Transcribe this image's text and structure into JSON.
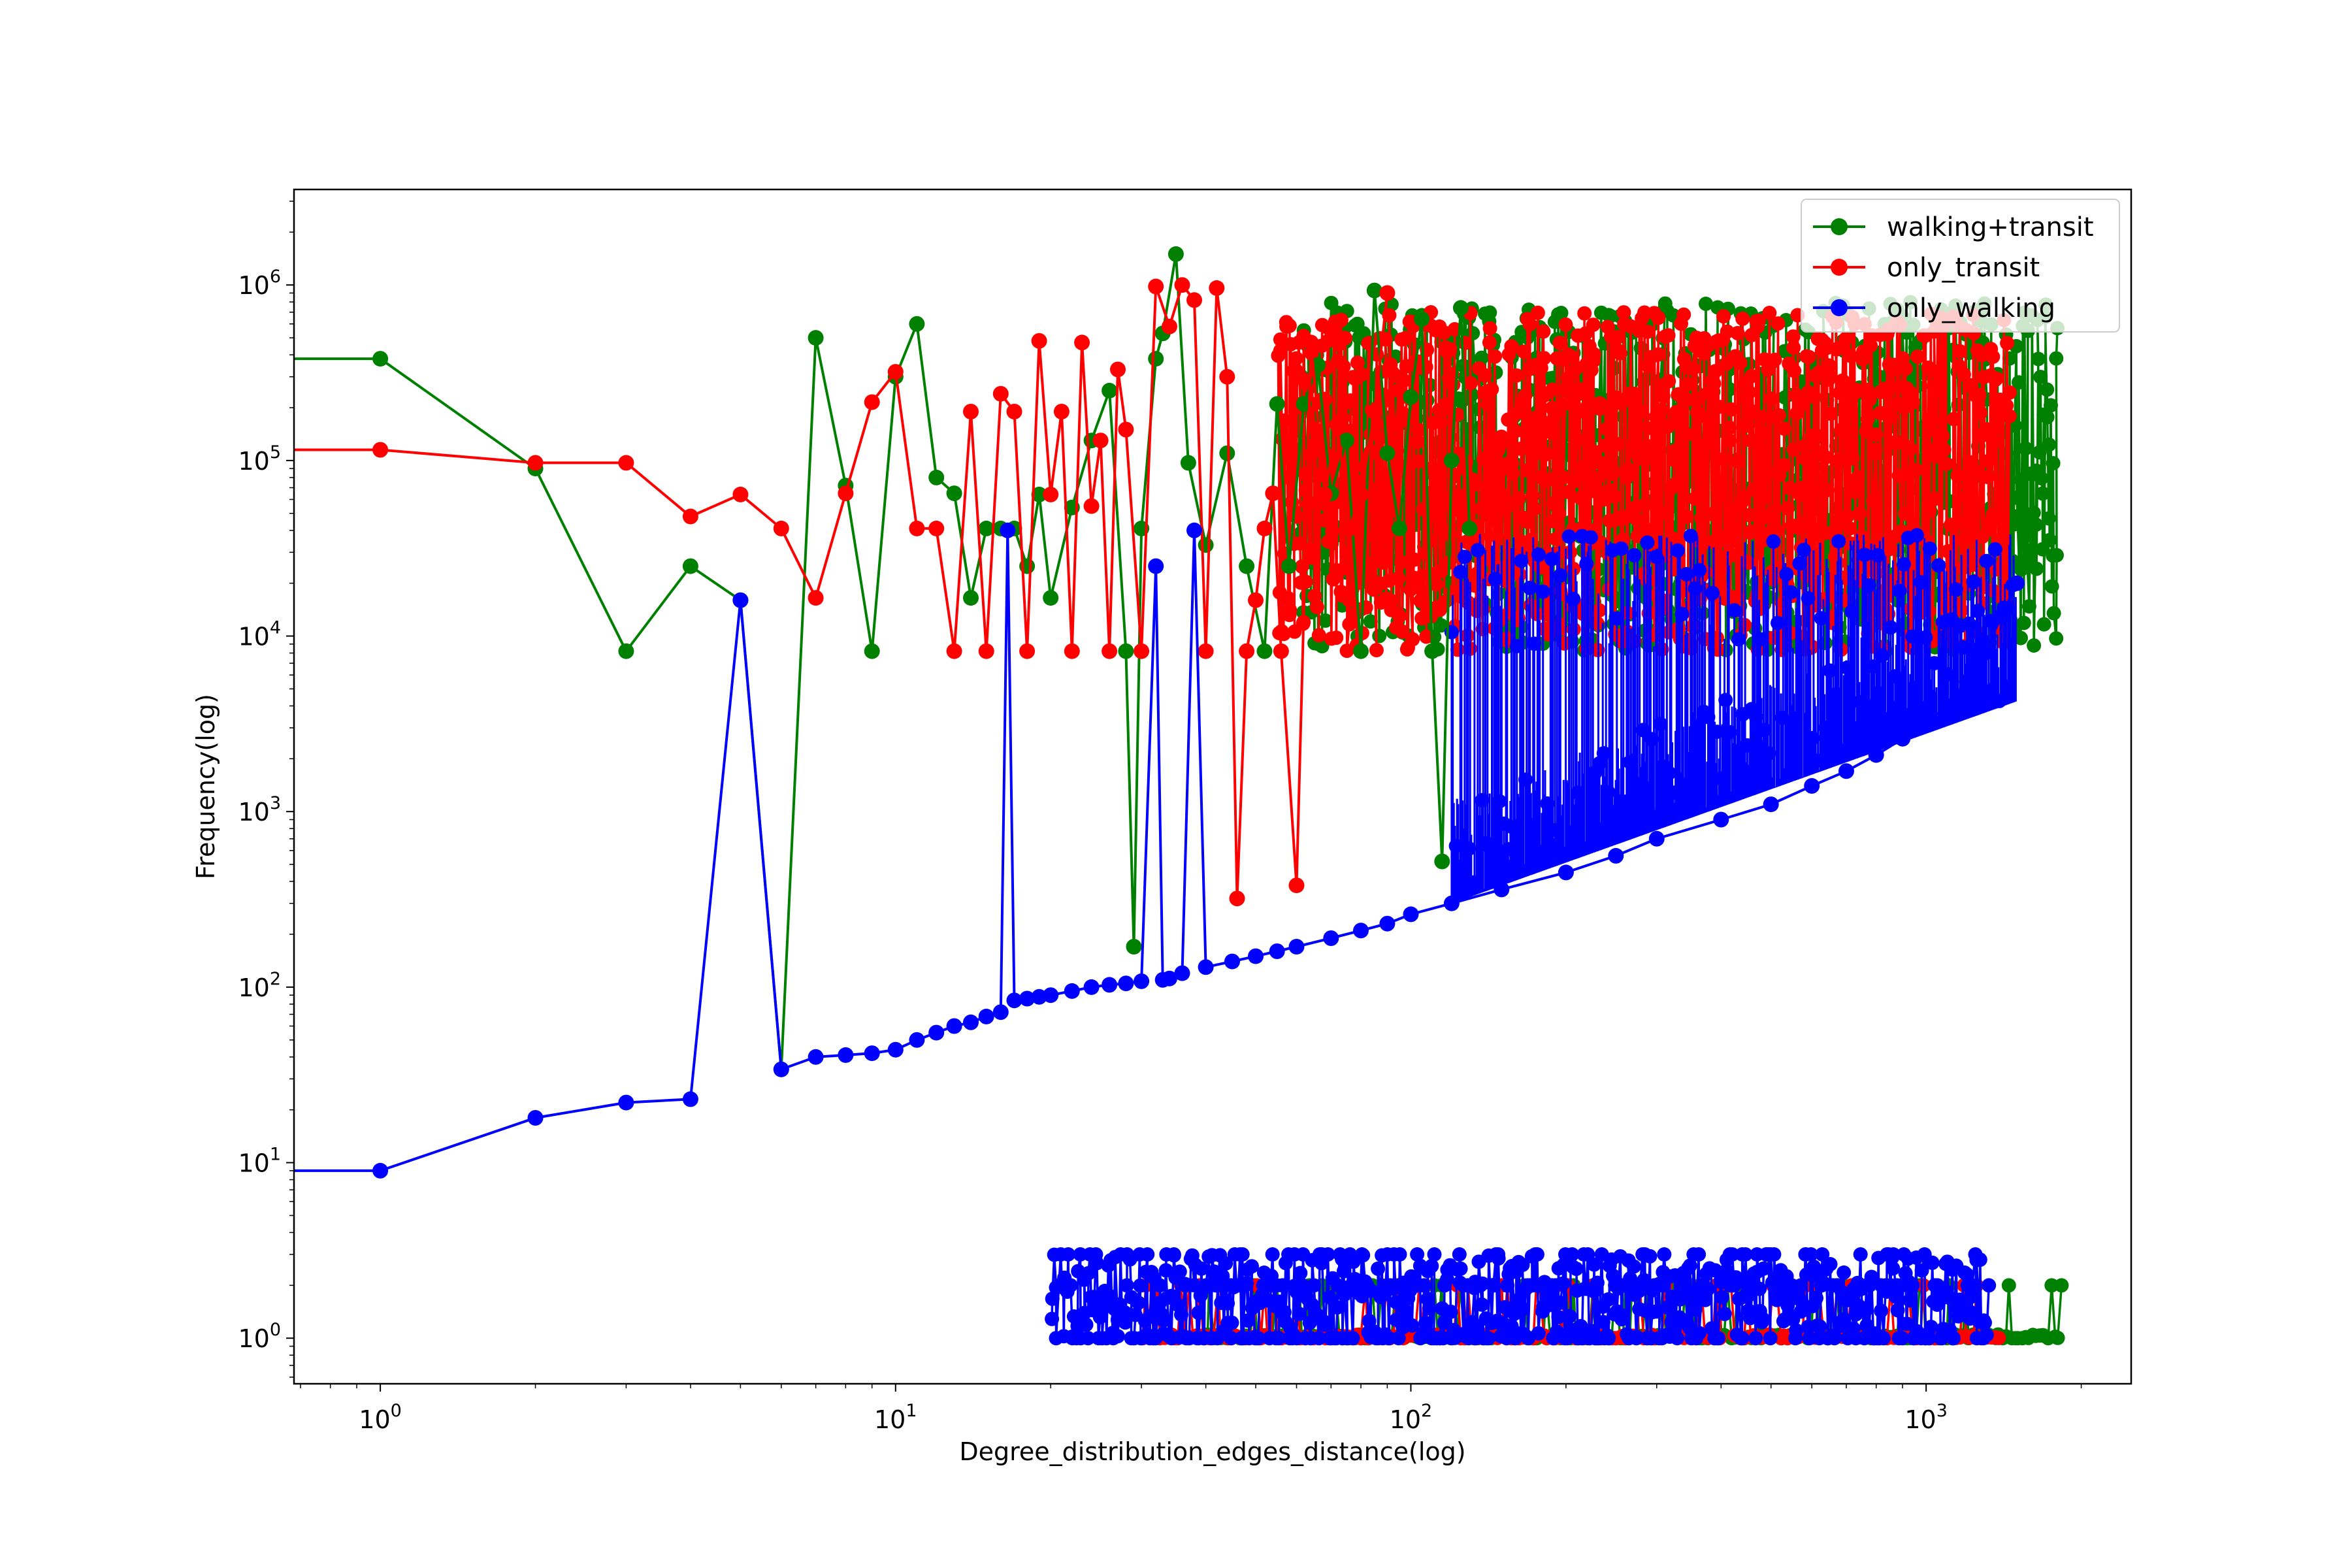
{
  "chart_data": {
    "type": "line",
    "xlabel": "Degree_distribution_edges_distance(log)",
    "ylabel": "Frequency(log)",
    "xscale": "log",
    "yscale": "log",
    "xlim": [
      0.68,
      2500
    ],
    "ylim": [
      0.55,
      3500000
    ],
    "x_ticks": [
      {
        "value": 1,
        "base": "10",
        "exp": "0"
      },
      {
        "value": 10,
        "base": "10",
        "exp": "1"
      },
      {
        "value": 100,
        "base": "10",
        "exp": "2"
      },
      {
        "value": 1000,
        "base": "10",
        "exp": "3"
      }
    ],
    "y_ticks": [
      {
        "value": 1,
        "base": "10",
        "exp": "0"
      },
      {
        "value": 10,
        "base": "10",
        "exp": "1"
      },
      {
        "value": 100,
        "base": "10",
        "exp": "2"
      },
      {
        "value": 1000,
        "base": "10",
        "exp": "3"
      },
      {
        "value": 10000,
        "base": "10",
        "exp": "4"
      },
      {
        "value": 100000,
        "base": "10",
        "exp": "5"
      },
      {
        "value": 1000000,
        "base": "10",
        "exp": "6"
      }
    ],
    "grid": false,
    "legend_position": "top-right",
    "series": [
      {
        "name": "walking+transit",
        "color": "#008000",
        "x": [
          0.68,
          1,
          2,
          3,
          4,
          5,
          6,
          7,
          8,
          9,
          10,
          11,
          12,
          13,
          14,
          15,
          16,
          17,
          18,
          19,
          20,
          22,
          24,
          26,
          28,
          29,
          30,
          32,
          33,
          35,
          37,
          40,
          44,
          48,
          52,
          55,
          58,
          62,
          66,
          70,
          75,
          80,
          85,
          90,
          95,
          100,
          105,
          110,
          115,
          120,
          125,
          130
        ],
        "y": [
          380000,
          380000,
          90000,
          8200,
          25000,
          16000,
          34,
          500000,
          72000,
          8200,
          300000,
          600000,
          80000,
          65000,
          16500,
          41000,
          41000,
          41000,
          25000,
          64000,
          16500,
          54000,
          130000,
          250000,
          8200,
          170,
          41000,
          380000,
          530000,
          1500000,
          97000,
          33000,
          110000,
          25000,
          8200,
          210000,
          25000,
          210000,
          350000,
          65000,
          130000,
          8200,
          930000,
          110000,
          41000,
          230000,
          640000,
          8200,
          520,
          100000,
          740000,
          41000
        ]
      },
      {
        "name": "only_transit",
        "color": "#ff0000",
        "x": [
          0.68,
          1,
          2,
          3,
          4,
          5,
          6,
          7,
          8,
          9,
          10,
          11,
          12,
          13,
          14,
          15,
          16,
          17,
          18,
          19,
          20,
          21,
          22,
          23,
          24,
          25,
          26,
          27,
          28,
          30,
          32,
          34,
          36,
          38,
          40,
          42,
          44,
          46,
          48,
          50,
          52,
          54,
          56,
          60,
          64,
          68,
          72,
          76,
          80,
          85,
          90
        ],
        "y": [
          115000,
          115000,
          97000,
          97000,
          48000,
          64000,
          41000,
          16500,
          65000,
          215000,
          320000,
          41000,
          41000,
          8200,
          190000,
          8200,
          240000,
          190000,
          8200,
          480000,
          64000,
          190000,
          8200,
          470000,
          55000,
          130000,
          8200,
          330000,
          150000,
          8200,
          980000,
          580000,
          1000000,
          820000,
          8200,
          960000,
          300000,
          320,
          8200,
          16000,
          41000,
          65000,
          8200,
          380,
          470000,
          64000,
          160000,
          41000,
          64000,
          190000,
          900000
        ]
      },
      {
        "name": "only_walking",
        "color": "#0000ff",
        "x": [
          0.68,
          1,
          2,
          3,
          4,
          5,
          6,
          7,
          8,
          9,
          10,
          11,
          12,
          13,
          14,
          15,
          16,
          16.5,
          17,
          18,
          19,
          20,
          22,
          24,
          26,
          28,
          30,
          32,
          33,
          34,
          36,
          38,
          40,
          45,
          50,
          55,
          60,
          70,
          80,
          90,
          100,
          120,
          150,
          200,
          250,
          300,
          400,
          500,
          600,
          700,
          800,
          900,
          1000,
          1100,
          1200,
          1300,
          1400,
          1500
        ],
        "y": [
          9,
          9,
          18,
          22,
          23,
          16000,
          34,
          40,
          41,
          42,
          44,
          50,
          55,
          60,
          63,
          68,
          72,
          40000,
          84,
          86,
          88,
          90,
          95,
          100,
          103,
          105,
          108,
          25000,
          110,
          112,
          120,
          40000,
          130,
          140,
          150,
          160,
          170,
          190,
          210,
          230,
          260,
          300,
          360,
          450,
          560,
          700,
          900,
          1100,
          1400,
          1700,
          2100,
          2600,
          3200,
          4000,
          5500,
          8000,
          13000,
          20000
        ]
      }
    ]
  }
}
